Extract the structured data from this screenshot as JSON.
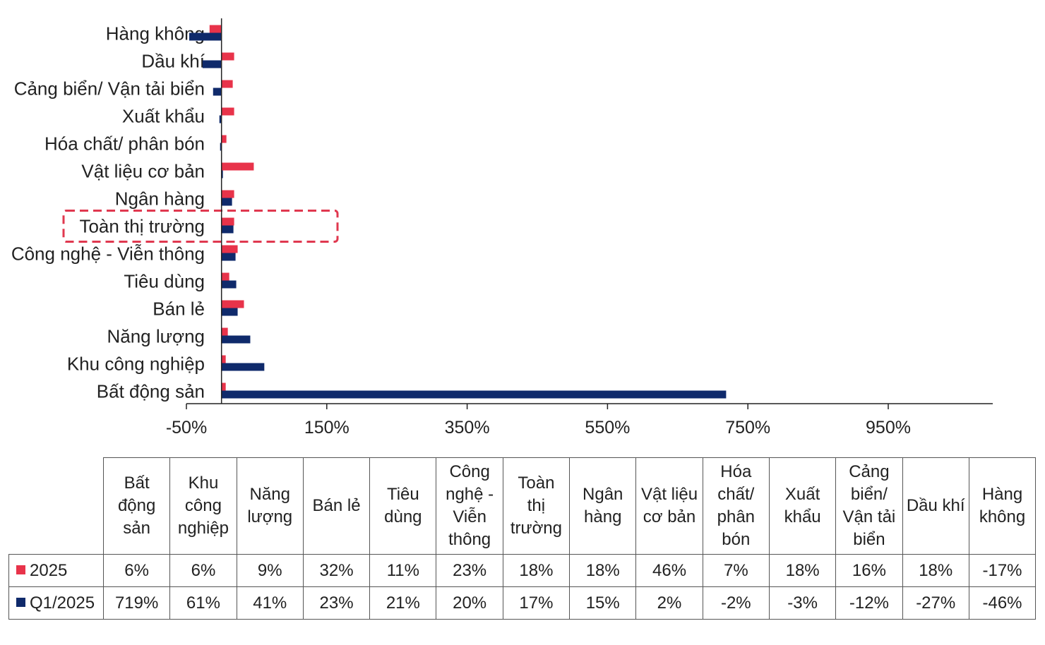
{
  "colors": {
    "series_2025": "#e8334a",
    "series_q1": "#0f2a6b",
    "highlight": "#e0384f",
    "axis": "#222222"
  },
  "chart_data": {
    "type": "bar",
    "orientation": "horizontal",
    "categories": [
      "Hàng không",
      "Dầu khí",
      "Cảng biển/ Vận tải biển",
      "Xuất khẩu",
      "Hóa chất/ phân bón",
      "Vật liệu cơ bản",
      "Ngân hàng",
      "Toàn thị trường",
      "Công nghệ - Viễn thông",
      "Tiêu dùng",
      "Bán lẻ",
      "Năng lượng",
      "Khu công nghiệp",
      "Bất động sản"
    ],
    "series": [
      {
        "name": "2025",
        "values": [
          -17,
          18,
          16,
          18,
          7,
          46,
          18,
          18,
          23,
          11,
          32,
          9,
          6,
          6
        ]
      },
      {
        "name": "Q1/2025",
        "values": [
          -46,
          -27,
          -12,
          -3,
          -2,
          2,
          15,
          17,
          20,
          21,
          23,
          41,
          61,
          719
        ]
      }
    ],
    "xlim": [
      -50,
      1050
    ],
    "xticks": [
      "-50%",
      "150%",
      "350%",
      "550%",
      "750%",
      "950%"
    ],
    "highlighted_category": "Toàn thị trường",
    "grid": false
  },
  "table": {
    "headers": [
      "Bất động sản",
      "Khu công nghiệp",
      "Năng lượng",
      "Bán lẻ",
      "Tiêu dùng",
      "Công nghệ - Viễn thông",
      "Toàn thị trường",
      "Ngân hàng",
      "Vật liệu cơ bản",
      "Hóa chất/ phân bón",
      "Xuất khẩu",
      "Cảng biển/ Vận tải biển",
      "Dầu khí",
      "Hàng không"
    ],
    "header_lines": [
      [
        "Bất",
        "động",
        "sản"
      ],
      [
        "Khu",
        "công",
        "nghiệp"
      ],
      [
        "Năng",
        "lượng"
      ],
      [
        "Bán lẻ"
      ],
      [
        "Tiêu",
        "dùng"
      ],
      [
        "Công",
        "nghệ -",
        "Viễn",
        "thông"
      ],
      [
        "Toàn",
        "thị",
        "trường"
      ],
      [
        "Ngân",
        "hàng"
      ],
      [
        "Vật liệu",
        "cơ bản"
      ],
      [
        "Hóa",
        "chất/",
        "phân",
        "bón"
      ],
      [
        "Xuất",
        "khẩu"
      ],
      [
        "Cảng",
        "biển/",
        "Vận tải",
        "biển"
      ],
      [
        "Dầu khí"
      ],
      [
        "Hàng",
        "không"
      ]
    ],
    "rows": [
      {
        "label": "2025",
        "values": [
          "6%",
          "6%",
          "9%",
          "32%",
          "11%",
          "23%",
          "18%",
          "18%",
          "46%",
          "7%",
          "18%",
          "16%",
          "18%",
          "-17%"
        ]
      },
      {
        "label": "Q1/2025",
        "values": [
          "719%",
          "61%",
          "41%",
          "23%",
          "21%",
          "20%",
          "17%",
          "15%",
          "2%",
          "-2%",
          "-3%",
          "-12%",
          "-27%",
          "-46%"
        ]
      }
    ]
  }
}
